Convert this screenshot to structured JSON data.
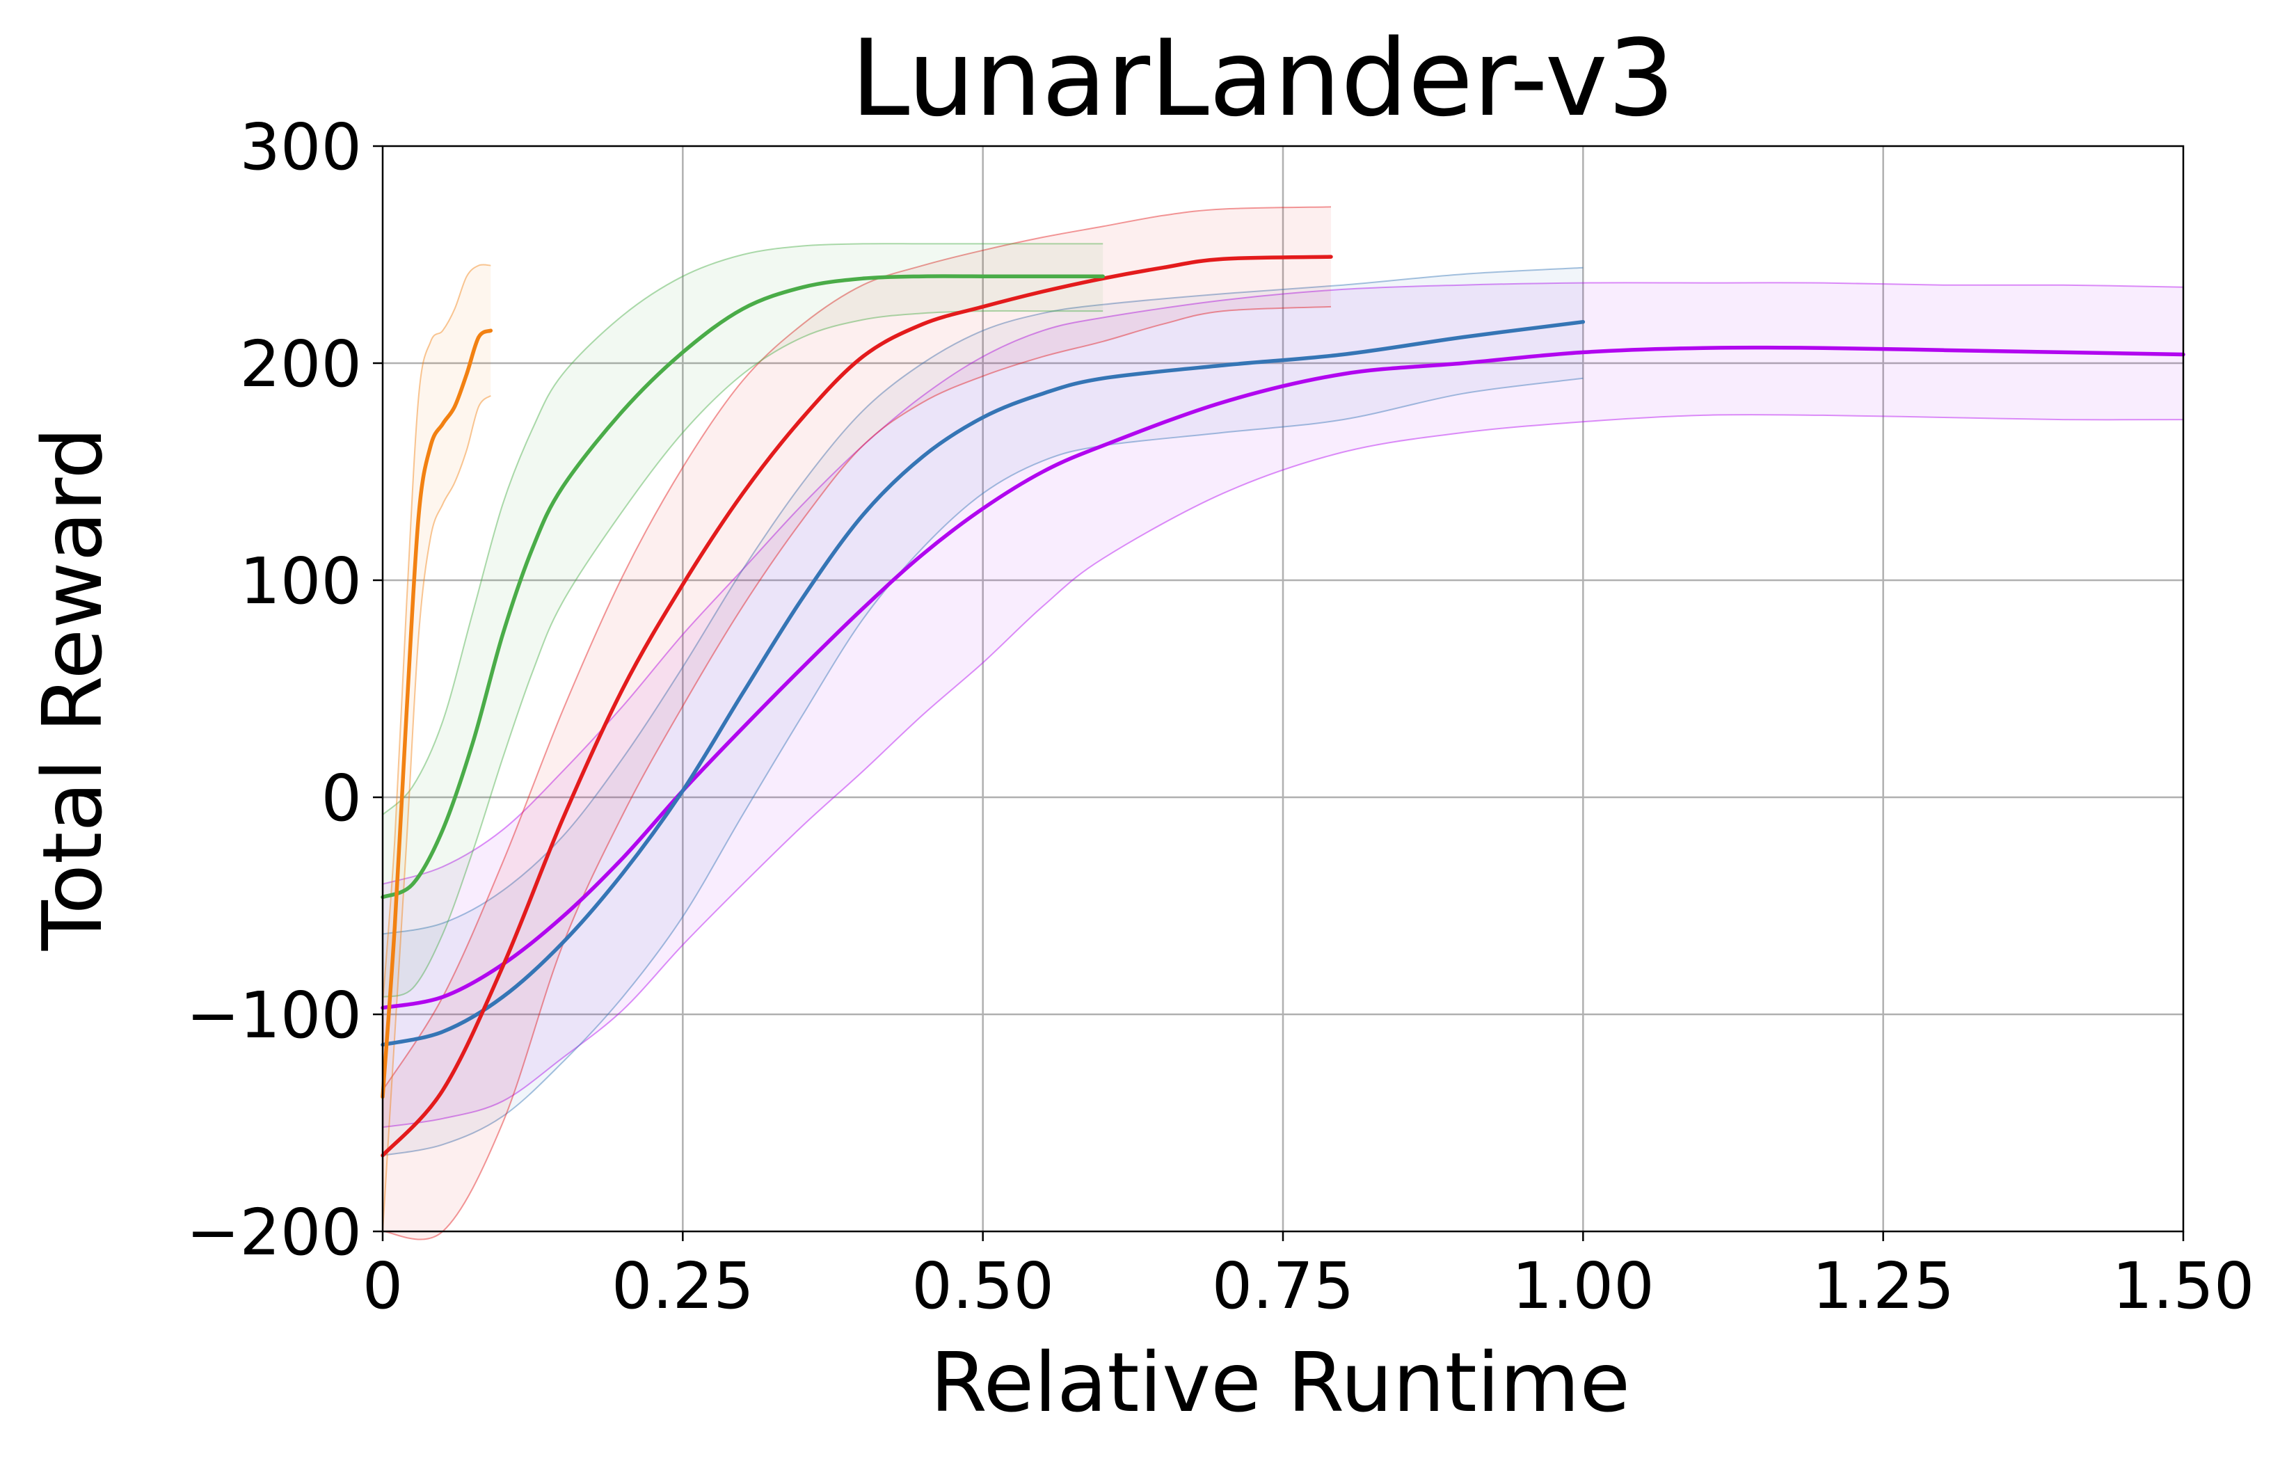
{
  "chart_data": {
    "type": "line",
    "title": "LunarLander-v3",
    "xlabel": "Relative Runtime",
    "ylabel": "Total Reward",
    "xlim": [
      0,
      1.5
    ],
    "ylim": [
      -200,
      300
    ],
    "xticks": [
      0,
      0.25,
      0.5,
      0.75,
      1.0,
      1.25,
      1.5
    ],
    "xtick_labels": [
      "0",
      "0.25",
      "0.50",
      "0.75",
      "1.00",
      "1.25",
      "1.50"
    ],
    "yticks": [
      -200,
      -100,
      0,
      100,
      200,
      300
    ],
    "ytick_labels": [
      "−200",
      "−100",
      "0",
      "100",
      "200",
      "300"
    ],
    "grid": true,
    "legend": "none",
    "series": [
      {
        "color": "#b106ef",
        "x": [
          0,
          0.05,
          0.1,
          0.15,
          0.2,
          0.25,
          0.3,
          0.35,
          0.4,
          0.45,
          0.5,
          0.55,
          0.6,
          0.7,
          0.8,
          0.9,
          1.0,
          1.1,
          1.2,
          1.3,
          1.4,
          1.5
        ],
        "mean": [
          -97,
          -92,
          -77,
          -55,
          -28,
          3,
          32,
          60,
          87,
          112,
          133,
          150,
          162,
          182,
          195,
          200,
          205,
          207,
          207,
          206,
          205,
          204
        ],
        "upper": [
          -40,
          -32,
          -15,
          12,
          42,
          75,
          105,
          135,
          162,
          185,
          203,
          215,
          221,
          229,
          234,
          236,
          237,
          237,
          237,
          236,
          236,
          235
        ],
        "lower": [
          -152,
          -148,
          -140,
          -120,
          -98,
          -68,
          -40,
          -13,
          12,
          38,
          62,
          88,
          110,
          140,
          159,
          168,
          173,
          176,
          176,
          175,
          174,
          174
        ]
      },
      {
        "color": "#3575b5",
        "x": [
          0,
          0.05,
          0.1,
          0.15,
          0.2,
          0.25,
          0.3,
          0.35,
          0.4,
          0.45,
          0.5,
          0.55,
          0.6,
          0.7,
          0.8,
          0.9,
          1.0
        ],
        "mean": [
          -114,
          -108,
          -92,
          -67,
          -35,
          3,
          48,
          92,
          130,
          157,
          175,
          186,
          193,
          199,
          204,
          212,
          219
        ],
        "upper": [
          -63,
          -58,
          -43,
          -18,
          18,
          60,
          105,
          145,
          178,
          200,
          215,
          223,
          227,
          232,
          236,
          241,
          244
        ],
        "lower": [
          -165,
          -160,
          -147,
          -122,
          -92,
          -55,
          -8,
          38,
          82,
          115,
          140,
          155,
          162,
          168,
          174,
          186,
          193
        ]
      },
      {
        "color": "#e31b1c",
        "x": [
          0,
          0.05,
          0.1,
          0.15,
          0.2,
          0.25,
          0.3,
          0.35,
          0.4,
          0.45,
          0.5,
          0.55,
          0.6,
          0.65,
          0.7,
          0.79
        ],
        "mean": [
          -165,
          -135,
          -78,
          -10,
          50,
          98,
          140,
          175,
          203,
          218,
          226,
          233,
          239,
          244,
          248,
          249
        ],
        "upper": [
          -135,
          -92,
          -30,
          40,
          102,
          152,
          192,
          218,
          236,
          245,
          252,
          258,
          263,
          268,
          271,
          272
        ],
        "lower": [
          -200,
          -200,
          -150,
          -68,
          -8,
          42,
          88,
          128,
          162,
          182,
          194,
          203,
          210,
          218,
          224,
          226
        ]
      },
      {
        "color": "#4aac48",
        "x": [
          0,
          0.025,
          0.05,
          0.075,
          0.1,
          0.125,
          0.15,
          0.2,
          0.25,
          0.3,
          0.35,
          0.4,
          0.45,
          0.5,
          0.55,
          0.6
        ],
        "mean": [
          -46,
          -40,
          -15,
          25,
          75,
          115,
          143,
          178,
          205,
          225,
          235,
          239,
          240,
          240,
          240,
          240
        ],
        "upper": [
          -8,
          5,
          35,
          85,
          135,
          170,
          195,
          222,
          240,
          250,
          254,
          255,
          255,
          255,
          255,
          255
        ],
        "lower": [
          -92,
          -88,
          -63,
          -25,
          18,
          58,
          90,
          132,
          168,
          195,
          212,
          220,
          223,
          224,
          224,
          224
        ]
      },
      {
        "color": "#f28112",
        "x": [
          0,
          0.01,
          0.02,
          0.03,
          0.04,
          0.05,
          0.06,
          0.07,
          0.08,
          0.09
        ],
        "mean": [
          -138,
          -60,
          40,
          130,
          162,
          172,
          180,
          195,
          212,
          215
        ],
        "upper": [
          -95,
          -20,
          90,
          185,
          210,
          215,
          225,
          240,
          245,
          245
        ],
        "lower": [
          -200,
          -110,
          -20,
          75,
          120,
          135,
          145,
          160,
          180,
          185
        ]
      }
    ]
  }
}
